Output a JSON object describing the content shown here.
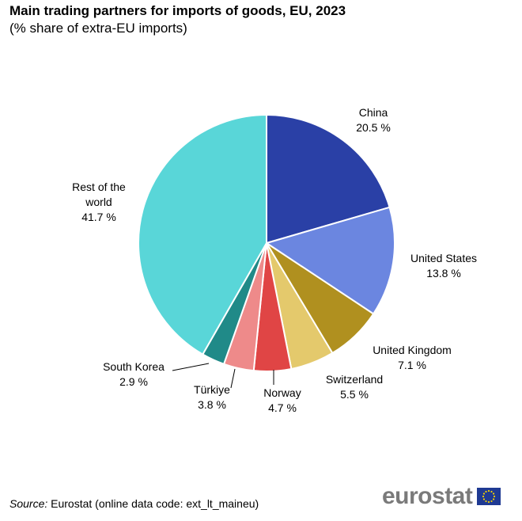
{
  "chart_data": {
    "type": "pie",
    "title": "Main trading partners for imports of goods, EU, 2023",
    "subtitle": "(% share of extra-EU imports)",
    "start": "12 o'clock, clockwise",
    "slices": [
      {
        "name": "China",
        "value": 20.5,
        "value_label": "20.5 %",
        "color": "#2a40a6"
      },
      {
        "name": "United States",
        "value": 13.8,
        "value_label": "13.8 %",
        "color": "#6b86e0"
      },
      {
        "name": "United Kingdom",
        "value": 7.1,
        "value_label": "7.1 %",
        "color": "#b0901f"
      },
      {
        "name": "Switzerland",
        "value": 5.5,
        "value_label": "5.5 %",
        "color": "#e4c96c"
      },
      {
        "name": "Norway",
        "value": 4.7,
        "value_label": "4.7 %",
        "color": "#e04545"
      },
      {
        "name": "Türkiye",
        "value": 3.8,
        "value_label": "3.8 %",
        "color": "#ee8a8a"
      },
      {
        "name": "South Korea",
        "value": 2.9,
        "value_label": "2.9 %",
        "color": "#208a88"
      },
      {
        "name_lines": [
          "Rest of the",
          "world"
        ],
        "value": 41.7,
        "value_label": "41.7 %",
        "color": "#59d6d8"
      }
    ]
  },
  "footer": {
    "source_label": "Source:",
    "source_text": "Eurostat (online data code: ext_lt_maineu)",
    "logo_text": "eurostat"
  }
}
